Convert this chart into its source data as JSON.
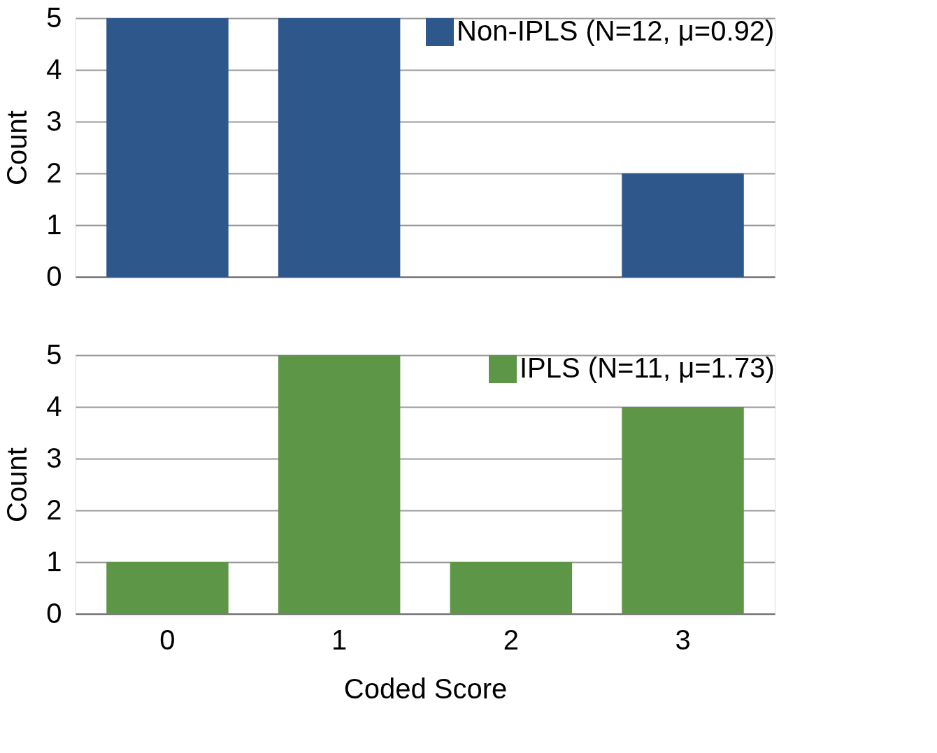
{
  "chart_data": [
    {
      "type": "bar",
      "categories": [
        "0",
        "1",
        "2",
        "3"
      ],
      "ylabel": "Count",
      "series": [
        {
          "name": "Non-IPLS (N=12, μ=0.92)",
          "color": "#2e578c",
          "values": [
            5,
            5,
            0,
            2
          ]
        }
      ],
      "ylim": [
        0,
        5
      ],
      "yticks": [
        0,
        1,
        2,
        3,
        4,
        5
      ],
      "grid": "y",
      "legend": "top right",
      "tick_labels": "y"
    },
    {
      "type": "bar",
      "categories": [
        "0",
        "1",
        "2",
        "3"
      ],
      "ylabel": "Count",
      "xlabel": "Coded Score",
      "series": [
        {
          "name": "IPLS (N=11, μ=1.73)",
          "color": "#5e9648",
          "values": [
            1,
            5,
            1,
            4
          ]
        }
      ],
      "ylim": [
        0,
        5
      ],
      "yticks": [
        0,
        1,
        2,
        3,
        4,
        5
      ],
      "grid": "y",
      "legend": "top right"
    }
  ]
}
